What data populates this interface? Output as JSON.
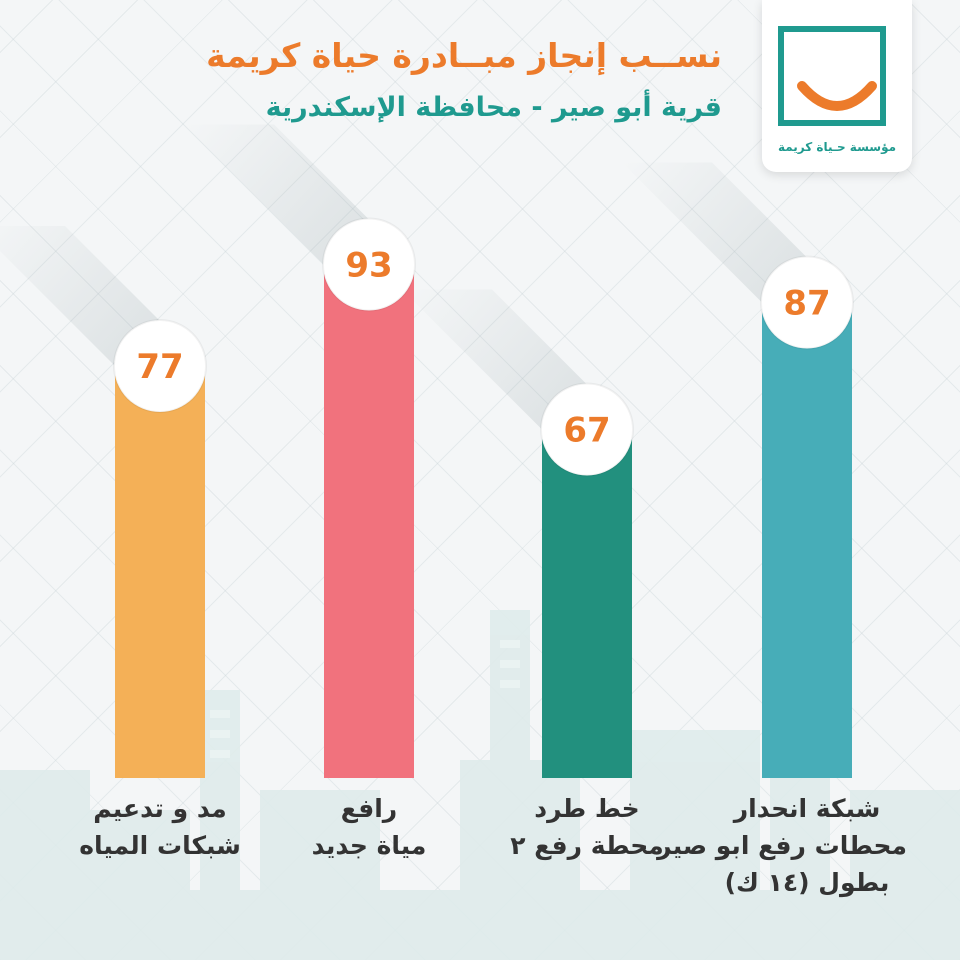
{
  "header": {
    "title": "نســب إنجاز مبــادرة حياة كريمة",
    "subtitle": "قرية أبو صير  -   محافظة الإسكندرية"
  },
  "logo": {
    "caption": "مؤسسة حـياة كريمة"
  },
  "colors": {
    "orange": "#f4b057",
    "red": "#f1727d",
    "green": "#22907e",
    "teal": "#47adb8",
    "number": "#ec7b2b",
    "brand_teal": "#1f9a8f"
  },
  "chart_data": {
    "type": "bar",
    "ylim": [
      0,
      100
    ],
    "categories": [
      "مد و تدعيم شبكات المياه",
      "رافع مياة جديد",
      "خط طرد محطة رفع ٢",
      "شبكة انحدار محطات رفع ابو صير بطول (١٤ ك)"
    ],
    "values": [
      77,
      93,
      67,
      87
    ]
  },
  "bars": [
    {
      "value": "77",
      "color": "#f4b057",
      "label_lines": [
        "مد و تدعيم",
        "شبكات المياه"
      ]
    },
    {
      "value": "93",
      "color": "#f1727d",
      "label_lines": [
        "رافع",
        "مياة جديد"
      ]
    },
    {
      "value": "67",
      "color": "#22907e",
      "label_lines": [
        "خط طرد",
        "محطة رفع ٢"
      ]
    },
    {
      "value": "87",
      "color": "#47adb8",
      "label_lines": [
        "شبكة انحدار",
        "محطات رفع ابو صير",
        "بطول (١٤ ك)"
      ]
    }
  ]
}
